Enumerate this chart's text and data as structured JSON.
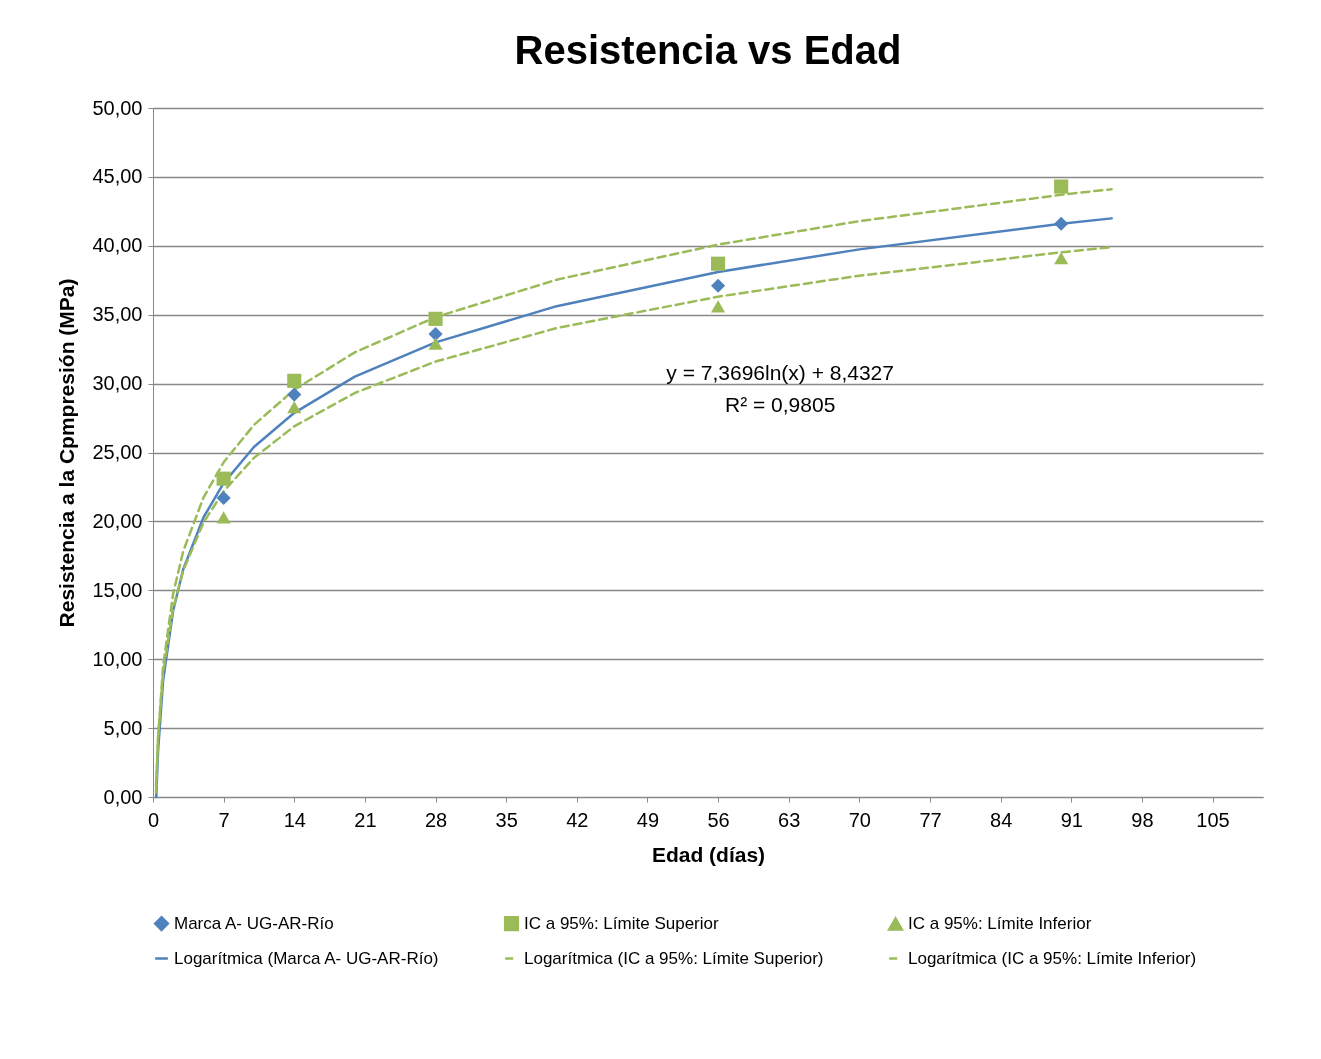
{
  "chart_data": {
    "type": "scatter",
    "title": "Resistencia vs Edad",
    "xlabel": "Edad (días)",
    "ylabel": "Resistencia a la Cpmpresión (MPa)",
    "xlim": [
      0,
      110
    ],
    "xticks": [
      0,
      7,
      14,
      21,
      28,
      35,
      42,
      49,
      56,
      63,
      70,
      77,
      84,
      91,
      98,
      105
    ],
    "ylim": [
      0,
      50
    ],
    "yticks": [
      {
        "value": 0,
        "label": "0,00"
      },
      {
        "value": 5,
        "label": "5,00"
      },
      {
        "value": 10,
        "label": "10,00"
      },
      {
        "value": 15,
        "label": "15,00"
      },
      {
        "value": 20,
        "label": "20,00"
      },
      {
        "value": 25,
        "label": "25,00"
      },
      {
        "value": 30,
        "label": "30,00"
      },
      {
        "value": 35,
        "label": "35,00"
      },
      {
        "value": 40,
        "label": "40,00"
      },
      {
        "value": 45,
        "label": "45,00"
      },
      {
        "value": 50,
        "label": "50,00"
      }
    ],
    "grid": "y",
    "legend": "bottom",
    "annotations": [
      "y = 7,3696ln(x) + 8,4327",
      "R² = 0,9805"
    ],
    "series": [
      {
        "name": "Marca A- UG-AR-Río",
        "type": "scatter",
        "marker": "diamond",
        "color": "#4f81bd",
        "x": [
          7,
          14,
          28,
          56,
          90
        ],
        "values": [
          21.7,
          29.2,
          33.6,
          37.1,
          41.6
        ]
      },
      {
        "name": "IC a 95%: Límite Superior",
        "type": "scatter",
        "marker": "square",
        "color": "#9bbb59",
        "x": [
          7,
          14,
          28,
          56,
          90
        ],
        "values": [
          23.1,
          30.2,
          34.7,
          38.7,
          44.3
        ]
      },
      {
        "name": "IC a 95%: Límite Inferior",
        "type": "scatter",
        "marker": "triangle",
        "color": "#9bbb59",
        "x": [
          7,
          14,
          28,
          56,
          90
        ],
        "values": [
          20.3,
          28.3,
          32.9,
          35.6,
          39.1
        ]
      },
      {
        "name": "Logarítmica (Marca A- UG-AR-Río)",
        "type": "line",
        "line_style": "solid",
        "color": "#4f81bd",
        "x": [
          0.32,
          0.5,
          1,
          2,
          3,
          5,
          7,
          10,
          14,
          20,
          28,
          40,
          56,
          70,
          90,
          95
        ],
        "values": [
          0.0,
          3.32,
          8.43,
          13.54,
          16.53,
          20.29,
          22.77,
          25.4,
          27.88,
          30.51,
          32.99,
          35.62,
          38.1,
          39.74,
          41.6,
          41.99
        ]
      },
      {
        "name": "Logarítmica (IC a 95%: Límite Superior)",
        "type": "line",
        "line_style": "dashed",
        "color": "#9bbb59",
        "x": [
          0.3,
          0.5,
          1,
          2,
          3,
          5,
          7,
          10,
          14,
          20,
          28,
          40,
          56,
          70,
          90,
          95
        ],
        "values": [
          0.35,
          4.23,
          9.5,
          14.77,
          17.85,
          21.73,
          24.29,
          27.0,
          29.56,
          32.27,
          34.82,
          37.54,
          40.09,
          41.79,
          43.7,
          44.11
        ]
      },
      {
        "name": "Logarítmica (IC a 95%: Límite Inferior)",
        "type": "line",
        "line_style": "dashed",
        "color": "#9bbb59",
        "x": [
          0.3,
          0.5,
          1,
          2,
          3,
          5,
          7,
          10,
          14,
          20,
          28,
          40,
          56,
          70,
          90,
          95
        ],
        "values": [
          0.8,
          4.27,
          8.98,
          13.69,
          16.44,
          19.91,
          22.19,
          24.61,
          26.9,
          29.32,
          31.6,
          34.03,
          36.31,
          37.83,
          39.53,
          39.9
        ]
      }
    ]
  }
}
